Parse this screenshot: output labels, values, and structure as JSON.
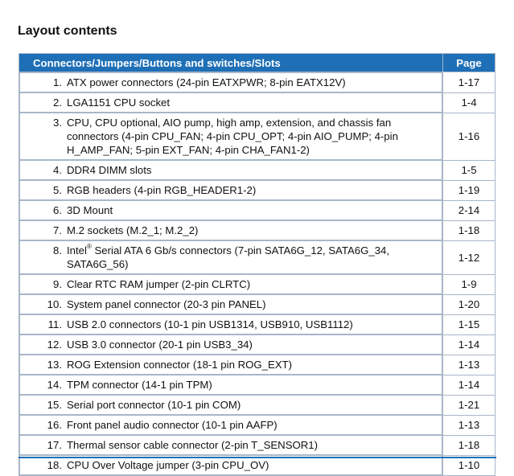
{
  "heading": "Layout contents",
  "table": {
    "col_desc": "Connectors/Jumpers/Buttons and switches/Slots",
    "col_page": "Page",
    "rows": [
      {
        "num": "1.",
        "pre": "ATX power connectors (24-pin EATXPWR; 8-pin EATX12V)",
        "sup": "",
        "post": "",
        "page": "1-17"
      },
      {
        "num": "2.",
        "pre": "LGA1151 CPU socket",
        "sup": "",
        "post": "",
        "page": "1-4"
      },
      {
        "num": "3.",
        "pre": "CPU, CPU optional, AIO pump, high amp, extension, and chassis fan connectors (4-pin CPU_FAN; 4-pin CPU_OPT; 4-pin AIO_PUMP; 4-pin H_AMP_FAN; 5-pin EXT_FAN; 4-pin CHA_FAN1-2)",
        "sup": "",
        "post": "",
        "page": "1-16"
      },
      {
        "num": "4.",
        "pre": "DDR4 DIMM slots",
        "sup": "",
        "post": "",
        "page": "1-5"
      },
      {
        "num": "5.",
        "pre": "RGB headers (4-pin RGB_HEADER1-2)",
        "sup": "",
        "post": "",
        "page": "1-19"
      },
      {
        "num": "6.",
        "pre": "3D Mount",
        "sup": "",
        "post": "",
        "page": "2-14"
      },
      {
        "num": "7.",
        "pre": "M.2 sockets (M.2_1; M.2_2)",
        "sup": "",
        "post": "",
        "page": "1-18"
      },
      {
        "num": "8.",
        "pre": "Intel",
        "sup": "®",
        "post": " Serial ATA 6 Gb/s connectors (7-pin SATA6G_12, SATA6G_34, SATA6G_56)",
        "page": "1-12"
      },
      {
        "num": "9.",
        "pre": "Clear RTC RAM jumper (2-pin CLRTC)",
        "sup": "",
        "post": "",
        "page": "1-9"
      },
      {
        "num": "10.",
        "pre": "System panel connector (20-3 pin PANEL)",
        "sup": "",
        "post": "",
        "page": "1-20"
      },
      {
        "num": "11.",
        "pre": "USB 2.0 connectors (10-1 pin USB1314, USB910, USB1112)",
        "sup": "",
        "post": "",
        "page": "1-15"
      },
      {
        "num": "12.",
        "pre": "USB 3.0 connector (20-1 pin USB3_34)",
        "sup": "",
        "post": "",
        "page": "1-14"
      },
      {
        "num": "13.",
        "pre": "ROG Extension connector (18-1 pin ROG_EXT)",
        "sup": "",
        "post": "",
        "page": "1-13"
      },
      {
        "num": "14.",
        "pre": "TPM connector (14-1 pin TPM)",
        "sup": "",
        "post": "",
        "page": "1-14"
      },
      {
        "num": "15.",
        "pre": "Serial port connector (10-1 pin COM)",
        "sup": "",
        "post": "",
        "page": "1-21"
      },
      {
        "num": "16.",
        "pre": "Front panel audio connector (10-1 pin AAFP)",
        "sup": "",
        "post": "",
        "page": "1-13"
      },
      {
        "num": "17.",
        "pre": "Thermal sensor cable connector (2-pin T_SENSOR1)",
        "sup": "",
        "post": "",
        "page": "1-18"
      },
      {
        "num": "18.",
        "pre": "CPU Over Voltage jumper (3-pin CPU_OV)",
        "sup": "",
        "post": "",
        "page": "1-10"
      }
    ]
  }
}
